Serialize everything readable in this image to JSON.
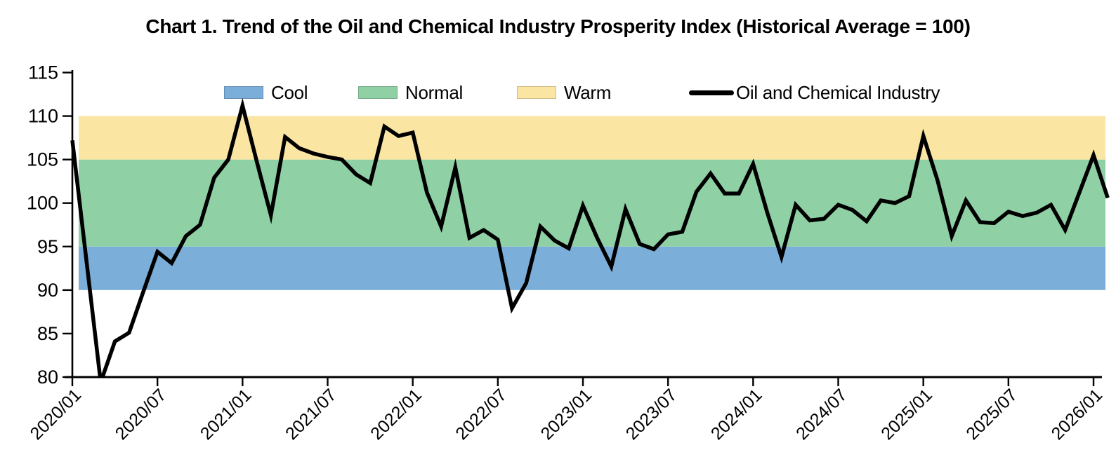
{
  "title": "Chart 1. Trend of the Oil and Chemical Industry Prosperity Index (Historical Average = 100)",
  "legend": {
    "items": [
      {
        "label": "Cool",
        "type": "band",
        "color": "#7CAEDA"
      },
      {
        "label": "Normal",
        "type": "band",
        "color": "#8FD0A5"
      },
      {
        "label": "Warm",
        "type": "band",
        "color": "#FAE5A2"
      },
      {
        "label": "Oil and Chemical Industry",
        "type": "line",
        "color": "#000000"
      }
    ]
  },
  "chart_data": {
    "type": "line",
    "title": "Chart 1. Trend of the Oil and Chemical Industry Prosperity Index (Historical Average = 100)",
    "ylabel": "",
    "xlabel": "",
    "ylim": [
      80,
      115
    ],
    "y_ticks": [
      80,
      85,
      90,
      95,
      100,
      105,
      110,
      115
    ],
    "grid": false,
    "legend_position": "top",
    "bands": [
      {
        "name": "Cool",
        "from": 90,
        "to": 95,
        "color": "#7CAEDA"
      },
      {
        "name": "Normal",
        "from": 95,
        "to": 105,
        "color": "#8FD0A5"
      },
      {
        "name": "Warm",
        "from": 105,
        "to": 110,
        "color": "#FAE5A2"
      }
    ],
    "x_tick_labels": [
      "2020/01",
      "2020/07",
      "2021/01",
      "2021/07",
      "2022/01",
      "2022/07",
      "2023/01",
      "2023/07",
      "2024/01",
      "2024/07",
      "2025/01",
      "2025/07",
      "2026/01"
    ],
    "x": [
      "2020/01",
      "2020/02",
      "2020/03",
      "2020/04",
      "2020/05",
      "2020/06",
      "2020/07",
      "2020/08",
      "2020/09",
      "2020/10",
      "2020/11",
      "2020/12",
      "2021/01",
      "2021/02",
      "2021/03",
      "2021/04",
      "2021/05",
      "2021/06",
      "2021/07",
      "2021/08",
      "2021/09",
      "2021/10",
      "2021/11",
      "2021/12",
      "2022/01",
      "2022/02",
      "2022/03",
      "2022/04",
      "2022/05",
      "2022/06",
      "2022/07",
      "2022/08",
      "2022/09",
      "2022/10",
      "2022/11",
      "2022/12",
      "2023/01",
      "2023/02",
      "2023/03",
      "2023/04",
      "2023/05",
      "2023/06",
      "2023/07",
      "2023/08",
      "2023/09",
      "2023/10",
      "2023/11",
      "2023/12",
      "2024/01",
      "2024/02",
      "2024/03",
      "2024/04",
      "2024/05",
      "2024/06",
      "2024/07",
      "2024/08",
      "2024/09",
      "2024/10",
      "2024/11",
      "2024/12",
      "2025/01",
      "2025/02",
      "2025/03",
      "2025/04",
      "2025/05",
      "2025/06",
      "2025/07",
      "2025/08",
      "2025/09",
      "2025/10",
      "2025/11",
      "2025/12",
      "2026/01",
      "2026/02"
    ],
    "series": [
      {
        "name": "Oil and Chemical Industry",
        "color": "#000000",
        "values": [
          107.2,
          93.3,
          79.4,
          84.1,
          85.1,
          89.8,
          94.4,
          93.1,
          96.2,
          97.5,
          102.9,
          105.0,
          111.2,
          104.8,
          98.6,
          107.6,
          106.3,
          105.7,
          105.3,
          105.0,
          103.3,
          102.3,
          108.8,
          107.7,
          108.1,
          101.2,
          97.3,
          104.1,
          96.0,
          96.9,
          95.8,
          87.9,
          90.8,
          97.3,
          95.7,
          94.8,
          99.7,
          96.0,
          92.7,
          99.3,
          95.3,
          94.7,
          96.4,
          96.7,
          101.3,
          103.4,
          101.1,
          101.1,
          104.5,
          98.9,
          93.8,
          99.8,
          98.0,
          98.2,
          99.8,
          99.2,
          97.9,
          100.3,
          100.0,
          100.8,
          107.7,
          102.6,
          96.2,
          100.3,
          97.8,
          97.7,
          99.0,
          98.5,
          98.9,
          99.8,
          96.9,
          101.2,
          105.5,
          100.6
        ]
      }
    ]
  }
}
